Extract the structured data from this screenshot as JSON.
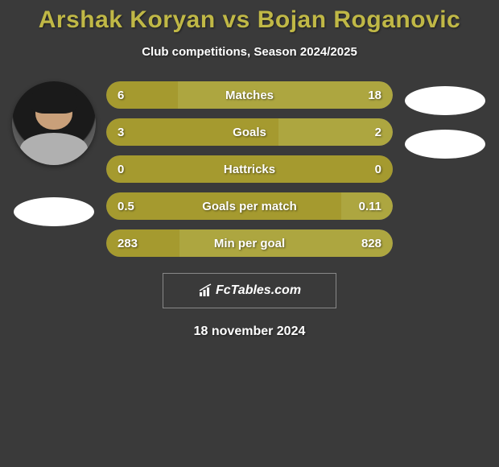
{
  "title": "Arshak Koryan vs Bojan Roganovic",
  "subtitle": "Club competitions, Season 2024/2025",
  "date": "18 november 2024",
  "brand": "FcTables.com",
  "colors": {
    "title": "#c0b846",
    "text": "#ffffff",
    "background": "#3a3a3a",
    "bar_left": "#a59a2f",
    "bar_right": "#ada640",
    "bar_base": "#6b6a68",
    "flag": "#ffffff"
  },
  "left_player": {
    "has_photo": true,
    "flag_color": "#ffffff"
  },
  "right_player": {
    "has_photo": false,
    "flag_colors": [
      "#ffffff",
      "#ffffff"
    ]
  },
  "stats": [
    {
      "label": "Matches",
      "left_val": "6",
      "right_val": "18",
      "left_pct": 25,
      "right_pct": 75,
      "left_color": "#a59a2f",
      "right_color": "#ada640"
    },
    {
      "label": "Goals",
      "left_val": "3",
      "right_val": "2",
      "left_pct": 60,
      "right_pct": 40,
      "left_color": "#a59a2f",
      "right_color": "#ada640"
    },
    {
      "label": "Hattricks",
      "left_val": "0",
      "right_val": "0",
      "left_pct": 100,
      "right_pct": 0,
      "left_color": "#a59a2f",
      "right_color": "#ada640"
    },
    {
      "label": "Goals per match",
      "left_val": "0.5",
      "right_val": "0.11",
      "left_pct": 82,
      "right_pct": 18,
      "left_color": "#a59a2f",
      "right_color": "#ada640"
    },
    {
      "label": "Min per goal",
      "left_val": "283",
      "right_val": "828",
      "left_pct": 25.5,
      "right_pct": 74.5,
      "left_color": "#a59a2f",
      "right_color": "#ada640"
    }
  ]
}
